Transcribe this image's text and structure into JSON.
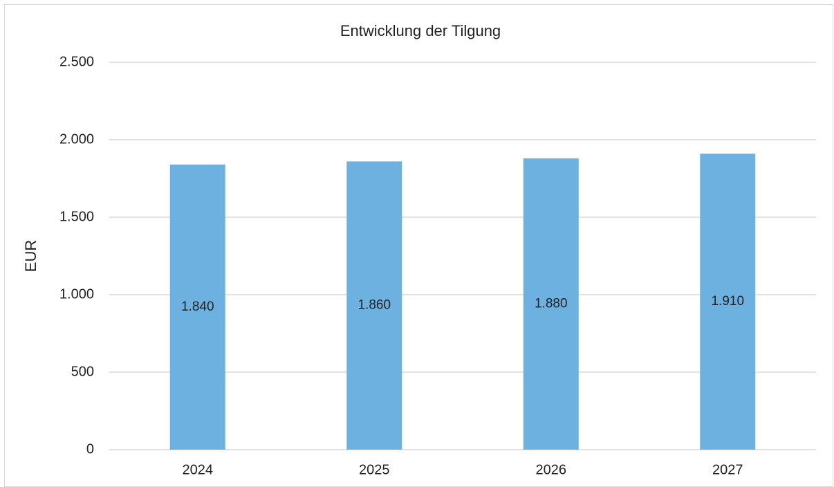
{
  "chart_data": {
    "type": "bar",
    "title": "Entwicklung der Tilgung",
    "y_label": "EUR",
    "categories": [
      "2024",
      "2025",
      "2026",
      "2027"
    ],
    "values": [
      1840,
      1860,
      1880,
      1910
    ],
    "value_labels": [
      "1.840",
      "1.860",
      "1.880",
      "1.910"
    ],
    "color": "#6db1e1",
    "ylim": [
      0,
      2500
    ],
    "yticks": [
      0,
      500,
      {
        "value": 1000,
        "label": "1.000"
      },
      {
        "value": 1500,
        "label": "1.500"
      },
      {
        "value": 2000,
        "label": "2.000"
      },
      {
        "value": 2500,
        "label": "2.500"
      }
    ],
    "grid": true
  }
}
